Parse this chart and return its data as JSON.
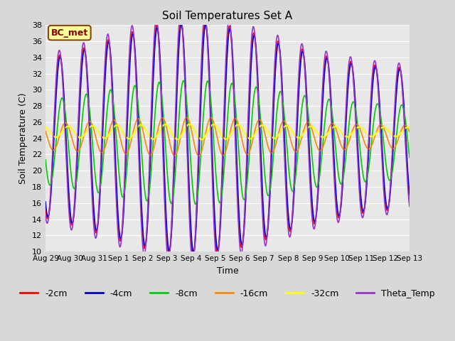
{
  "title": "Soil Temperatures Set A",
  "xlabel": "Time",
  "ylabel": "Soil Temperature (C)",
  "ylim": [
    10,
    38
  ],
  "annotation": "BC_met",
  "series": [
    {
      "label": "-2cm",
      "color": "#ff0000",
      "lw": 1.2
    },
    {
      "label": "-4cm",
      "color": "#0000cc",
      "lw": 1.2
    },
    {
      "label": "-8cm",
      "color": "#00cc00",
      "lw": 1.2
    },
    {
      "label": "-16cm",
      "color": "#ff8800",
      "lw": 1.2
    },
    {
      "label": "-32cm",
      "color": "#ffff00",
      "lw": 1.5
    },
    {
      "label": "Theta_Temp",
      "color": "#9933cc",
      "lw": 1.2
    }
  ],
  "xtick_labels": [
    "Aug 29",
    "Aug 30",
    "Aug 31",
    "Sep 1",
    "Sep 2",
    "Sep 3",
    "Sep 4",
    "Sep 5",
    "Sep 6",
    "Sep 7",
    "Sep 8",
    "Sep 9",
    "Sep 10",
    "Sep 11",
    "Sep 12",
    "Sep 13"
  ],
  "n_days": 15,
  "pts_per_day": 144,
  "bg_color": "#d8d8d8",
  "plot_bg": "#e8e8e8"
}
